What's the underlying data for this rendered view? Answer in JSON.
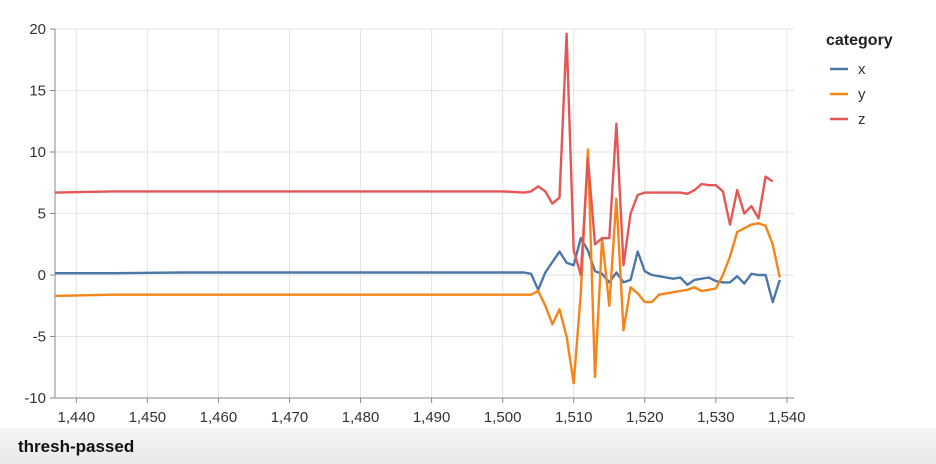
{
  "footer": {
    "title": "thresh-passed"
  },
  "chart_data": {
    "type": "line",
    "xlim": [
      1437,
      1541
    ],
    "ylim": [
      -10,
      20
    ],
    "x_ticks": [
      1440,
      1450,
      1460,
      1470,
      1480,
      1490,
      1500,
      1510,
      1520,
      1530,
      1540
    ],
    "x_tick_labels": [
      "1,440",
      "1,450",
      "1,460",
      "1,470",
      "1,480",
      "1,490",
      "1,500",
      "1,510",
      "1,520",
      "1,530",
      "1,540"
    ],
    "y_ticks": [
      -10,
      -5,
      0,
      5,
      10,
      15,
      20
    ],
    "y_tick_labels": [
      "-10",
      "-5",
      "0",
      "5",
      "10",
      "15",
      "20"
    ],
    "grid": true,
    "legend": {
      "title": "category",
      "placement": "right"
    },
    "series": [
      {
        "name": "x",
        "color": "#4c78a8",
        "points": [
          [
            1437,
            0.15
          ],
          [
            1445,
            0.15
          ],
          [
            1455,
            0.2
          ],
          [
            1465,
            0.2
          ],
          [
            1475,
            0.2
          ],
          [
            1485,
            0.2
          ],
          [
            1495,
            0.2
          ],
          [
            1500,
            0.2
          ],
          [
            1503,
            0.2
          ],
          [
            1504,
            0.1
          ],
          [
            1505,
            -1.2
          ],
          [
            1506,
            0.2
          ],
          [
            1508,
            1.9
          ],
          [
            1509,
            1.0
          ],
          [
            1510,
            0.8
          ],
          [
            1511,
            3.0
          ],
          [
            1512,
            2.0
          ],
          [
            1513,
            0.3
          ],
          [
            1514,
            0.1
          ],
          [
            1515,
            -0.6
          ],
          [
            1516,
            0.2
          ],
          [
            1517,
            -0.6
          ],
          [
            1518,
            -0.4
          ],
          [
            1519,
            1.9
          ],
          [
            1520,
            0.3
          ],
          [
            1521,
            0.0
          ],
          [
            1522,
            -0.1
          ],
          [
            1523,
            -0.2
          ],
          [
            1524,
            -0.3
          ],
          [
            1525,
            -0.2
          ],
          [
            1526,
            -0.8
          ],
          [
            1527,
            -0.4
          ],
          [
            1528,
            -0.3
          ],
          [
            1529,
            -0.2
          ],
          [
            1530,
            -0.5
          ],
          [
            1531,
            -0.6
          ],
          [
            1532,
            -0.6
          ],
          [
            1533,
            -0.1
          ],
          [
            1534,
            -0.7
          ],
          [
            1535,
            0.1
          ],
          [
            1536,
            0.0
          ],
          [
            1537,
            0.0
          ],
          [
            1538,
            -2.2
          ],
          [
            1539,
            -0.4
          ]
        ]
      },
      {
        "name": "y",
        "color": "#f58518",
        "points": [
          [
            1437,
            -1.7
          ],
          [
            1445,
            -1.6
          ],
          [
            1455,
            -1.6
          ],
          [
            1465,
            -1.6
          ],
          [
            1475,
            -1.6
          ],
          [
            1485,
            -1.6
          ],
          [
            1495,
            -1.6
          ],
          [
            1500,
            -1.6
          ],
          [
            1503,
            -1.6
          ],
          [
            1504,
            -1.6
          ],
          [
            1505,
            -1.3
          ],
          [
            1506,
            -2.5
          ],
          [
            1507,
            -4.0
          ],
          [
            1508,
            -2.8
          ],
          [
            1509,
            -5.0
          ],
          [
            1510,
            -8.8
          ],
          [
            1511,
            -1.5
          ],
          [
            1512,
            10.2
          ],
          [
            1513,
            -8.3
          ],
          [
            1514,
            3.0
          ],
          [
            1515,
            -2.5
          ],
          [
            1516,
            6.2
          ],
          [
            1517,
            -4.5
          ],
          [
            1518,
            -1.0
          ],
          [
            1519,
            -1.5
          ],
          [
            1520,
            -2.2
          ],
          [
            1521,
            -2.2
          ],
          [
            1522,
            -1.6
          ],
          [
            1523,
            -1.5
          ],
          [
            1524,
            -1.4
          ],
          [
            1525,
            -1.3
          ],
          [
            1526,
            -1.2
          ],
          [
            1527,
            -1.0
          ],
          [
            1528,
            -1.3
          ],
          [
            1529,
            -1.2
          ],
          [
            1530,
            -1.1
          ],
          [
            1531,
            0.0
          ],
          [
            1532,
            1.5
          ],
          [
            1533,
            3.5
          ],
          [
            1534,
            3.8
          ],
          [
            1535,
            4.1
          ],
          [
            1536,
            4.2
          ],
          [
            1537,
            4.0
          ],
          [
            1538,
            2.5
          ],
          [
            1539,
            -0.2
          ]
        ]
      },
      {
        "name": "z",
        "color": "#e45756",
        "points": [
          [
            1437,
            6.7
          ],
          [
            1445,
            6.8
          ],
          [
            1455,
            6.8
          ],
          [
            1465,
            6.8
          ],
          [
            1475,
            6.8
          ],
          [
            1485,
            6.8
          ],
          [
            1495,
            6.8
          ],
          [
            1500,
            6.8
          ],
          [
            1503,
            6.7
          ],
          [
            1504,
            6.8
          ],
          [
            1505,
            7.2
          ],
          [
            1506,
            6.8
          ],
          [
            1507,
            5.8
          ],
          [
            1508,
            6.3
          ],
          [
            1509,
            19.6
          ],
          [
            1510,
            2.0
          ],
          [
            1511,
            0.0
          ],
          [
            1512,
            9.5
          ],
          [
            1513,
            2.5
          ],
          [
            1514,
            3.0
          ],
          [
            1515,
            3.0
          ],
          [
            1516,
            12.3
          ],
          [
            1517,
            0.8
          ],
          [
            1518,
            5.0
          ],
          [
            1519,
            6.5
          ],
          [
            1520,
            6.7
          ],
          [
            1521,
            6.7
          ],
          [
            1522,
            6.7
          ],
          [
            1523,
            6.7
          ],
          [
            1524,
            6.7
          ],
          [
            1525,
            6.7
          ],
          [
            1526,
            6.6
          ],
          [
            1527,
            6.9
          ],
          [
            1528,
            7.4
          ],
          [
            1529,
            7.3
          ],
          [
            1530,
            7.3
          ],
          [
            1531,
            6.8
          ],
          [
            1532,
            4.1
          ],
          [
            1533,
            6.9
          ],
          [
            1534,
            5.0
          ],
          [
            1535,
            5.6
          ],
          [
            1536,
            4.6
          ],
          [
            1537,
            8.0
          ],
          [
            1538,
            7.6
          ]
        ]
      }
    ]
  }
}
